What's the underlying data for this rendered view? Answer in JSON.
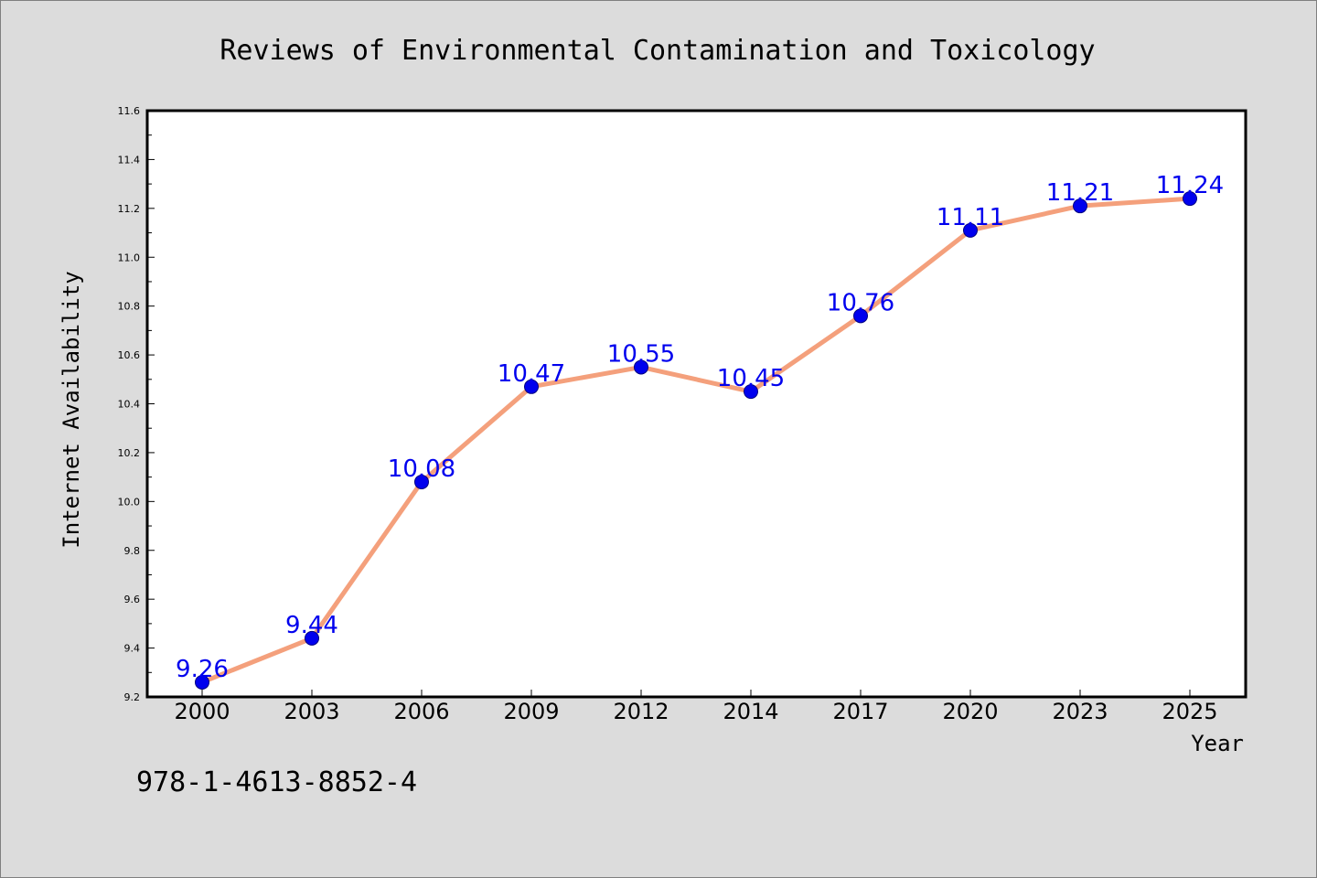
{
  "chart_data": {
    "type": "line",
    "title": "Reviews of Environmental Contamination and Toxicology",
    "xlabel": "Year",
    "ylabel": "Internet Availability",
    "categories": [
      "2000",
      "2003",
      "2006",
      "2009",
      "2012",
      "2014",
      "2017",
      "2020",
      "2023",
      "2025"
    ],
    "series": [
      {
        "values": [
          9.26,
          9.44,
          10.08,
          10.47,
          10.55,
          10.45,
          10.76,
          11.11,
          11.21,
          11.24
        ],
        "data_labels": [
          "9.26",
          "9.44",
          "10.08",
          "10.47",
          "10.55",
          "10.45",
          "10.76",
          "11.11",
          "11.21",
          "11.24"
        ]
      }
    ],
    "ylim": [
      9.2,
      11.6
    ],
    "yticks": [
      "9.2",
      "9.4",
      "9.6",
      "9.8",
      "10.0",
      "10.2",
      "10.4",
      "10.6",
      "10.8",
      "11.0",
      "11.2",
      "11.4",
      "11.6"
    ],
    "grid": false,
    "legend": "none"
  },
  "annotation": "978-1-4613-8852-4",
  "colors": {
    "background": "#dcdcdc",
    "plot_background": "#ffffff",
    "line": "#f4a07c",
    "marker": "#0000ee",
    "marker_edge": "#000080",
    "data_label": "#0000ee"
  }
}
